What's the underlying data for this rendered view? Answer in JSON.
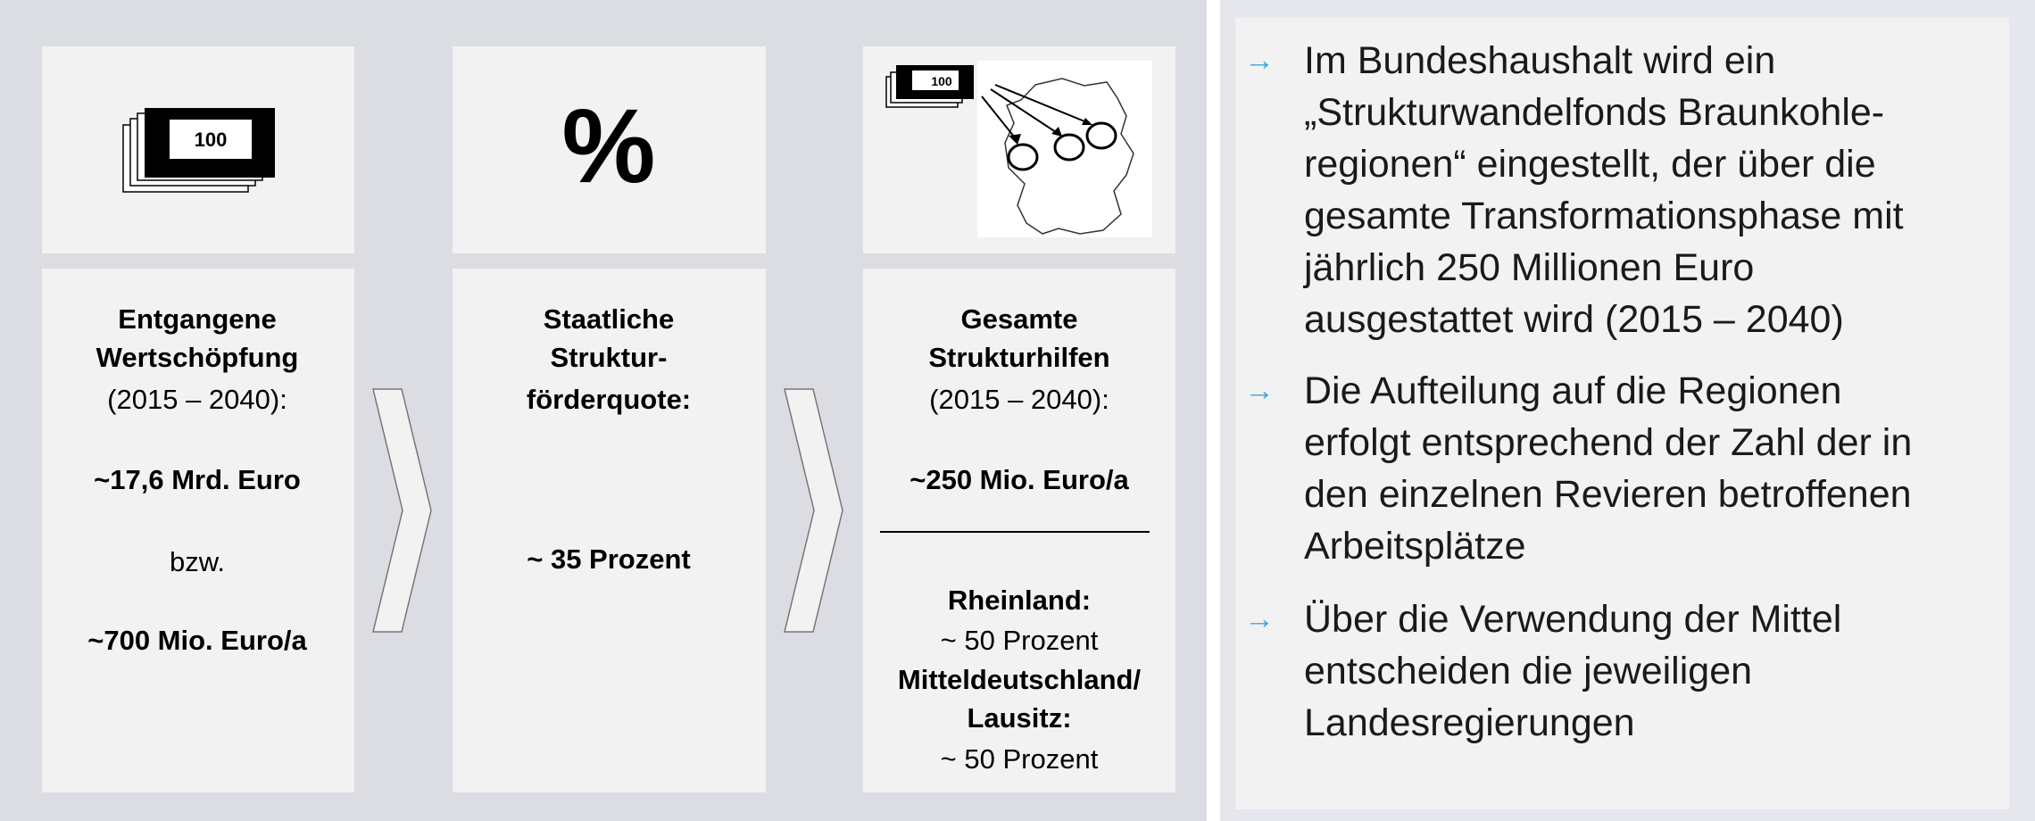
{
  "columns": [
    {
      "icon": "100",
      "lines": [
        "Entgangene",
        "Wertschöpfung",
        "(2015 – 2040):",
        "~17,6 Mrd. Euro",
        "bzw.",
        "~700 Mio. Euro/a"
      ]
    },
    {
      "icon": "%",
      "lines": [
        "Staatliche",
        "Struktur-",
        "förderquote:",
        "~ 35 Prozent"
      ]
    },
    {
      "icon": "100",
      "lines": [
        "Gesamte",
        "Strukturhilfen",
        "(2015 – 2040):",
        "~250 Mio. Euro/a",
        "Rheinland:",
        "~ 50 Prozent",
        "Mitteldeutschland/",
        "Lausitz:",
        "~ 50 Prozent"
      ]
    }
  ],
  "bullet_marker": "→",
  "bullets": [
    [
      "Im Bundeshaushalt wird ein",
      "„Strukturwandelfonds Braunkohle-",
      "regionen“ eingestellt, der über die",
      "gesamte Transformationsphase mit",
      "jährlich 250 Millionen Euro",
      "ausgestattet wird (2015 – 2040)"
    ],
    [
      "Die Aufteilung auf die Regionen",
      "erfolgt entsprechend der Zahl der in",
      "den einzelnen Revieren betroffenen",
      "Arbeitsplätze"
    ],
    [
      "Über die Verwendung der Mittel",
      "entscheiden die jeweiligen",
      "Landesregierungen"
    ]
  ]
}
